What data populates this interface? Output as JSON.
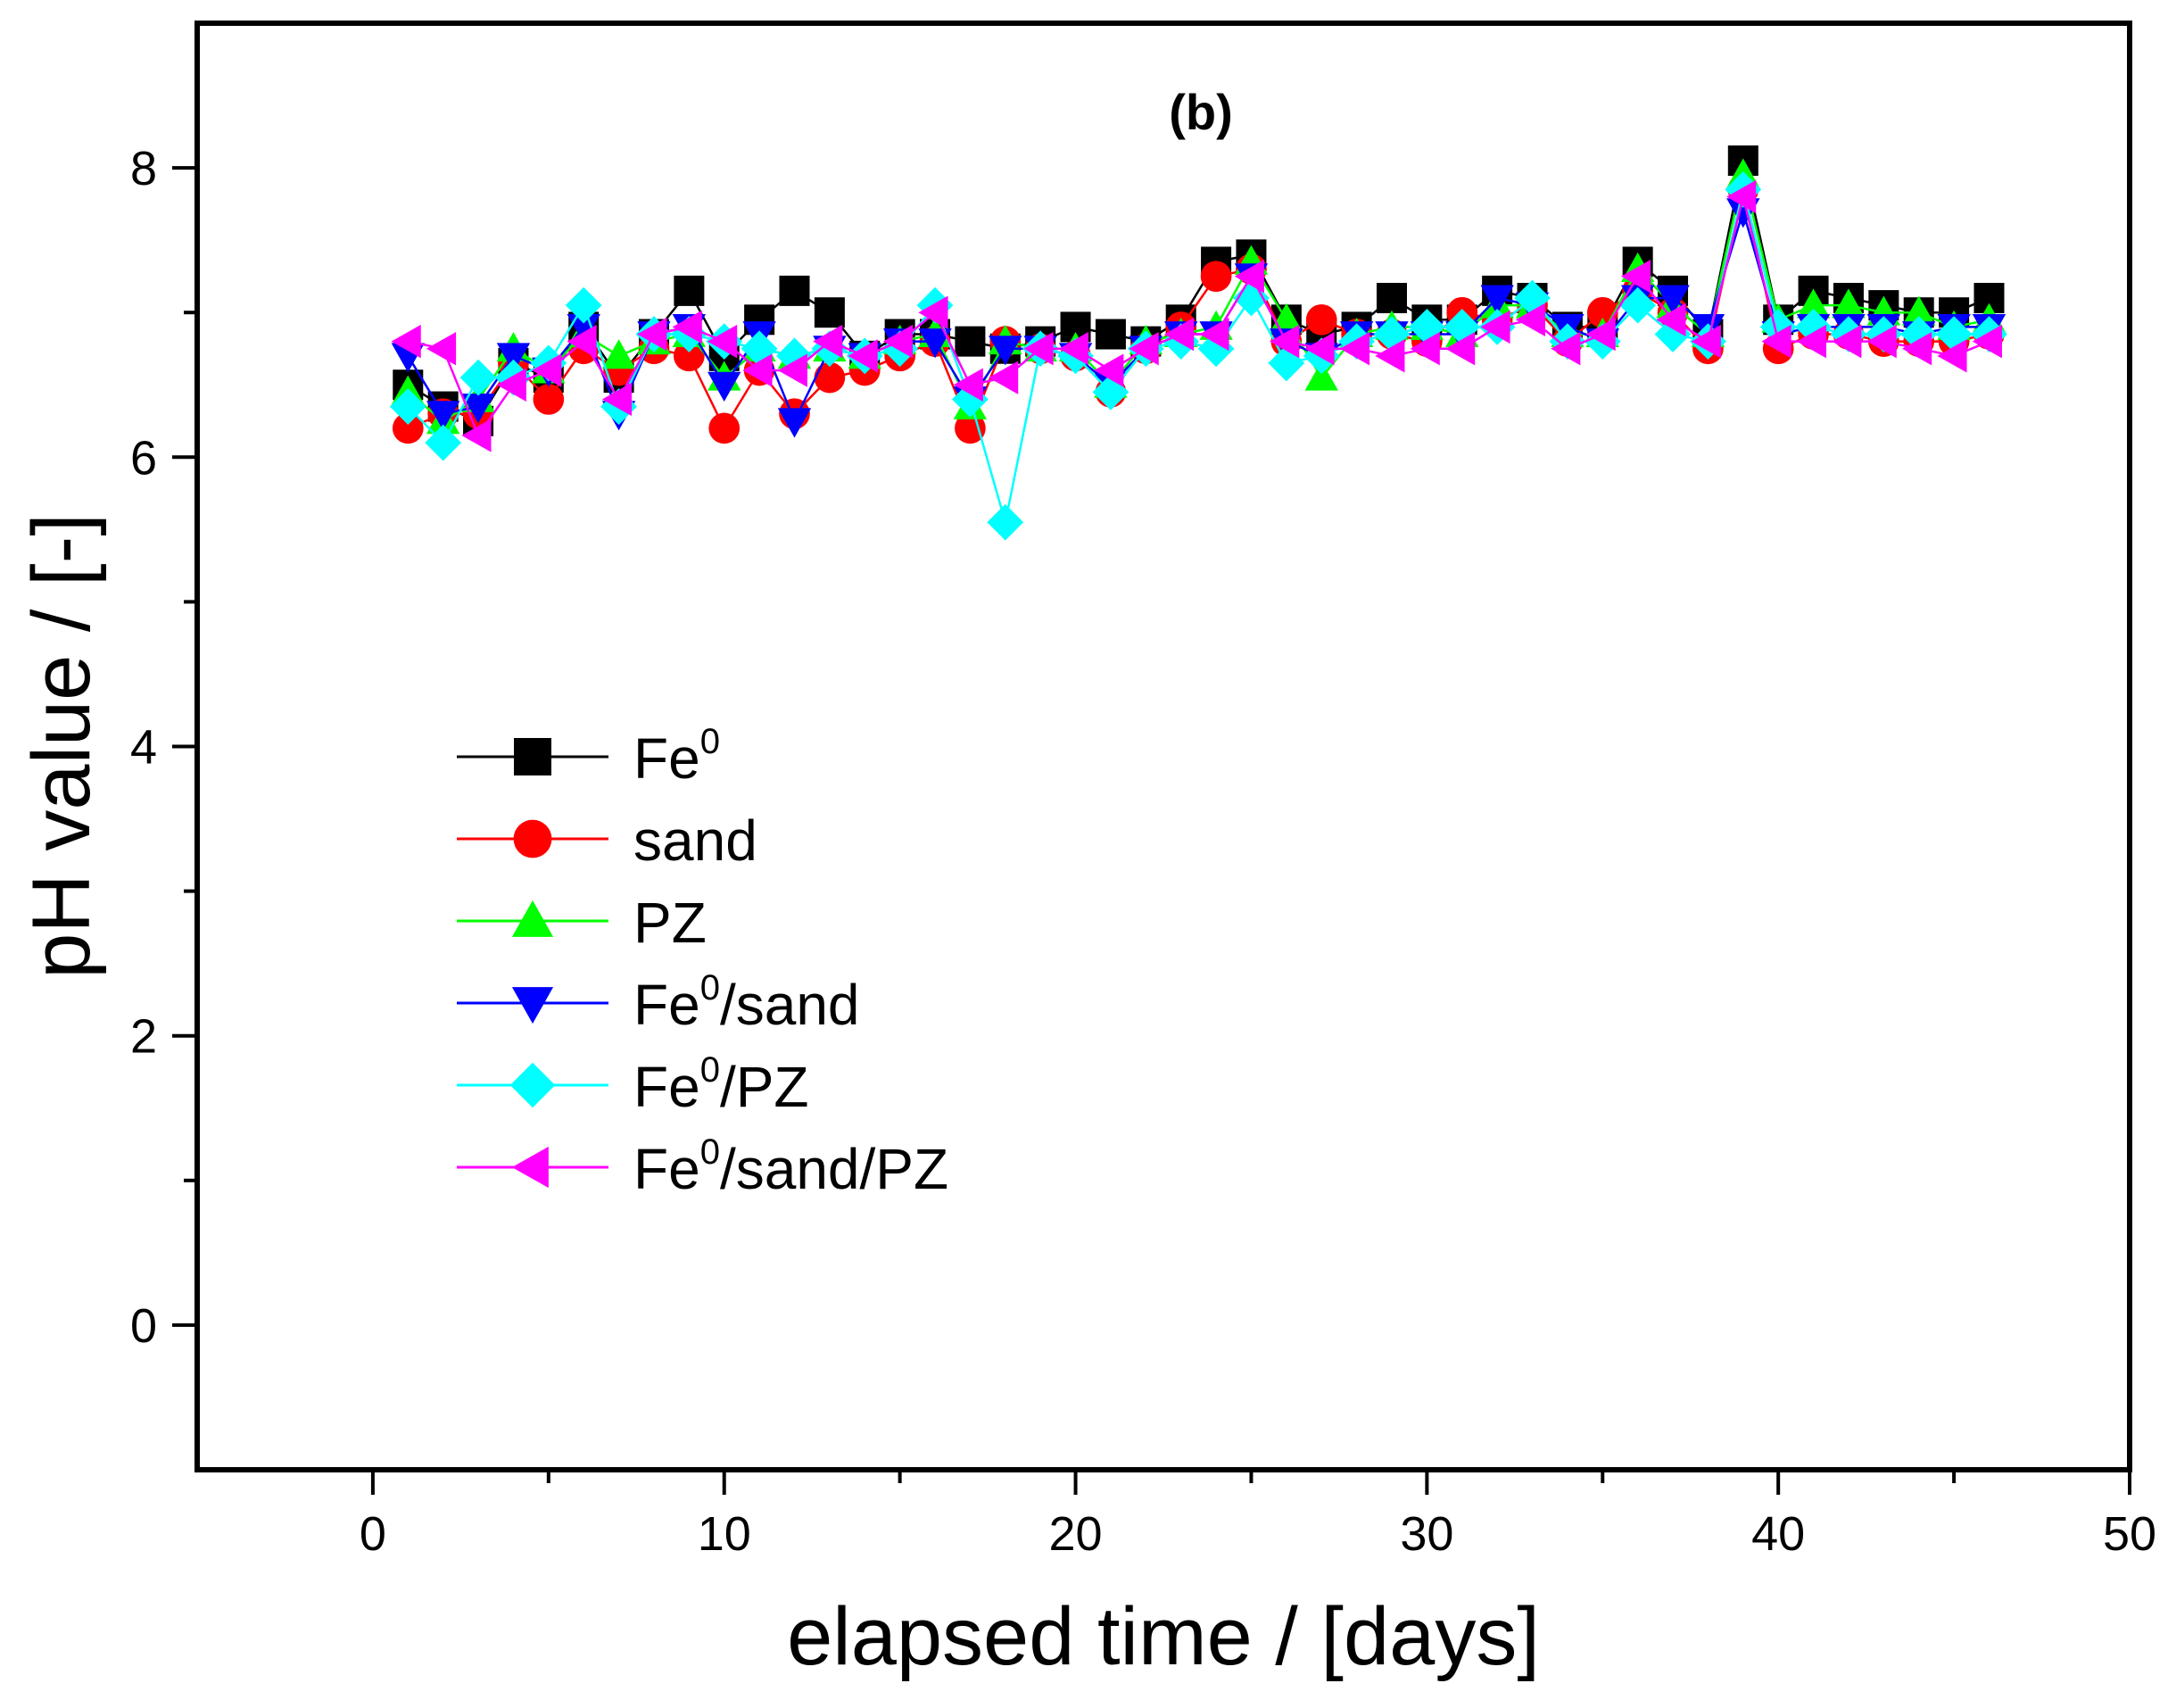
{
  "chart_data": {
    "type": "scatter",
    "panel_label": "(b)",
    "xlabel": "elapsed time / [days]",
    "ylabel": "pH value / [-]",
    "xlim": [
      -5,
      50
    ],
    "ylim": [
      -1,
      9
    ],
    "xticks": [
      0,
      10,
      20,
      30,
      40,
      50
    ],
    "yticks": [
      0,
      2,
      4,
      6,
      8
    ],
    "grid": false,
    "legend_position": "center-left",
    "series": [
      {
        "name": "Fe",
        "name_sup": "0",
        "name_suffix": "",
        "color": "#000000",
        "marker": "square",
        "x": [
          1,
          2,
          3,
          4,
          5,
          6,
          7,
          8,
          9,
          10,
          11,
          12,
          13,
          14,
          15,
          16,
          17,
          18,
          19,
          20,
          21,
          22,
          23,
          24,
          25,
          26,
          27,
          28,
          29,
          30,
          31,
          32,
          33,
          34,
          35,
          36,
          37,
          38,
          39,
          40,
          41,
          42,
          43,
          44,
          45,
          46
        ],
        "y": [
          6.5,
          6.35,
          6.25,
          6.65,
          6.55,
          6.9,
          6.55,
          6.85,
          7.15,
          6.7,
          6.95,
          7.15,
          7.0,
          6.7,
          6.85,
          6.85,
          6.8,
          6.75,
          6.8,
          6.9,
          6.85,
          6.8,
          6.95,
          7.35,
          7.4,
          6.95,
          6.85,
          6.9,
          7.1,
          6.95,
          6.95,
          7.15,
          7.1,
          6.9,
          6.9,
          7.35,
          7.15,
          6.85,
          8.05,
          6.95,
          7.15,
          7.1,
          7.05,
          7.0,
          7.0,
          7.1
        ]
      },
      {
        "name": "sand",
        "name_sup": "",
        "name_suffix": "",
        "color": "#ff0000",
        "marker": "circle",
        "x": [
          1,
          2,
          3,
          4,
          5,
          6,
          7,
          8,
          9,
          10,
          11,
          12,
          13,
          14,
          15,
          16,
          17,
          18,
          19,
          20,
          21,
          22,
          23,
          24,
          25,
          26,
          27,
          28,
          29,
          30,
          31,
          32,
          33,
          34,
          35,
          36,
          37,
          38,
          39,
          40,
          41,
          42,
          43,
          44,
          45,
          46
        ],
        "y": [
          6.2,
          6.3,
          6.3,
          6.65,
          6.4,
          6.75,
          6.6,
          6.75,
          6.7,
          6.2,
          6.6,
          6.3,
          6.55,
          6.6,
          6.7,
          6.8,
          6.2,
          6.8,
          6.75,
          6.7,
          6.45,
          6.75,
          6.9,
          7.25,
          7.3,
          6.8,
          6.95,
          6.85,
          6.85,
          6.8,
          7.0,
          6.95,
          7.05,
          6.8,
          7.0,
          7.15,
          7.0,
          6.75,
          7.85,
          6.75,
          6.85,
          6.85,
          6.8,
          6.8,
          6.8,
          6.85
        ]
      },
      {
        "name": "PZ",
        "name_sup": "",
        "name_suffix": "",
        "color": "#00ff00",
        "marker": "triangle-up",
        "x": [
          1,
          2,
          3,
          4,
          5,
          6,
          7,
          8,
          9,
          10,
          11,
          12,
          13,
          14,
          15,
          16,
          17,
          18,
          19,
          20,
          21,
          22,
          23,
          24,
          25,
          26,
          27,
          28,
          29,
          30,
          31,
          32,
          33,
          34,
          35,
          36,
          37,
          38,
          39,
          40,
          41,
          42,
          43,
          44,
          45,
          46
        ],
        "y": [
          6.45,
          6.25,
          6.4,
          6.75,
          6.6,
          6.85,
          6.7,
          6.8,
          6.85,
          6.55,
          6.75,
          6.7,
          6.75,
          6.7,
          6.8,
          6.85,
          6.35,
          6.8,
          6.75,
          6.75,
          6.5,
          6.8,
          6.85,
          6.9,
          7.35,
          6.95,
          6.55,
          6.85,
          6.9,
          6.9,
          6.85,
          7.05,
          7.05,
          6.85,
          6.85,
          7.3,
          7.05,
          6.85,
          7.95,
          6.95,
          7.05,
          7.05,
          7.0,
          7.0,
          6.9,
          6.95
        ]
      },
      {
        "name": "Fe",
        "name_sup": "0",
        "name_suffix": "/sand",
        "color": "#0000ff",
        "marker": "triangle-down",
        "x": [
          1,
          2,
          3,
          4,
          5,
          6,
          7,
          8,
          9,
          10,
          11,
          12,
          13,
          14,
          15,
          16,
          17,
          18,
          19,
          20,
          21,
          22,
          23,
          24,
          25,
          26,
          27,
          28,
          29,
          30,
          31,
          32,
          33,
          34,
          35,
          36,
          37,
          38,
          39,
          40,
          41,
          42,
          43,
          44,
          45,
          46
        ],
        "y": [
          6.7,
          6.3,
          6.35,
          6.7,
          6.6,
          6.9,
          6.3,
          6.85,
          6.9,
          6.5,
          6.85,
          6.25,
          6.75,
          6.7,
          6.8,
          6.8,
          6.4,
          6.75,
          6.75,
          6.7,
          6.5,
          6.75,
          6.85,
          6.85,
          7.25,
          6.8,
          6.7,
          6.85,
          6.85,
          6.85,
          6.85,
          7.1,
          7.05,
          6.9,
          6.8,
          7.1,
          7.1,
          6.9,
          7.7,
          6.85,
          6.9,
          6.9,
          6.9,
          6.85,
          6.9,
          6.9
        ]
      },
      {
        "name": "Fe",
        "name_sup": "0",
        "name_suffix": "/PZ",
        "color": "#00ffff",
        "marker": "diamond",
        "x": [
          1,
          2,
          3,
          4,
          5,
          6,
          7,
          8,
          9,
          10,
          11,
          12,
          13,
          14,
          15,
          16,
          17,
          18,
          19,
          20,
          21,
          22,
          23,
          24,
          25,
          26,
          27,
          28,
          29,
          30,
          31,
          32,
          33,
          34,
          35,
          36,
          37,
          38,
          39,
          40,
          41,
          42,
          43,
          44,
          45,
          46
        ],
        "y": [
          6.35,
          6.1,
          6.55,
          6.55,
          6.65,
          7.05,
          6.35,
          6.85,
          6.85,
          6.8,
          6.75,
          6.7,
          6.75,
          6.7,
          6.75,
          7.05,
          6.4,
          5.55,
          6.75,
          6.7,
          6.45,
          6.75,
          6.8,
          6.75,
          7.1,
          6.65,
          6.7,
          6.8,
          6.85,
          6.9,
          6.9,
          6.9,
          7.1,
          6.8,
          6.8,
          7.05,
          6.85,
          6.8,
          7.85,
          6.9,
          6.9,
          6.85,
          6.85,
          6.85,
          6.85,
          6.85
        ]
      },
      {
        "name": "Fe",
        "name_sup": "0",
        "name_suffix": "/sand/PZ",
        "color": "#ff00ff",
        "marker": "triangle-left",
        "x": [
          1,
          2,
          3,
          4,
          5,
          6,
          7,
          8,
          9,
          10,
          11,
          12,
          13,
          14,
          15,
          16,
          17,
          18,
          19,
          20,
          21,
          22,
          23,
          24,
          25,
          26,
          27,
          28,
          29,
          30,
          31,
          32,
          33,
          34,
          35,
          36,
          37,
          38,
          39,
          40,
          41,
          42,
          43,
          44,
          45,
          46
        ],
        "y": [
          6.8,
          6.75,
          6.15,
          6.5,
          6.6,
          6.8,
          6.4,
          6.85,
          6.9,
          6.8,
          6.6,
          6.6,
          6.8,
          6.7,
          6.8,
          7.0,
          6.5,
          6.55,
          6.75,
          6.75,
          6.6,
          6.75,
          6.85,
          6.85,
          7.25,
          6.8,
          6.75,
          6.75,
          6.7,
          6.75,
          6.75,
          6.9,
          6.95,
          6.75,
          6.85,
          7.25,
          6.95,
          6.8,
          7.8,
          6.8,
          6.8,
          6.8,
          6.8,
          6.75,
          6.7,
          6.8
        ]
      }
    ]
  }
}
